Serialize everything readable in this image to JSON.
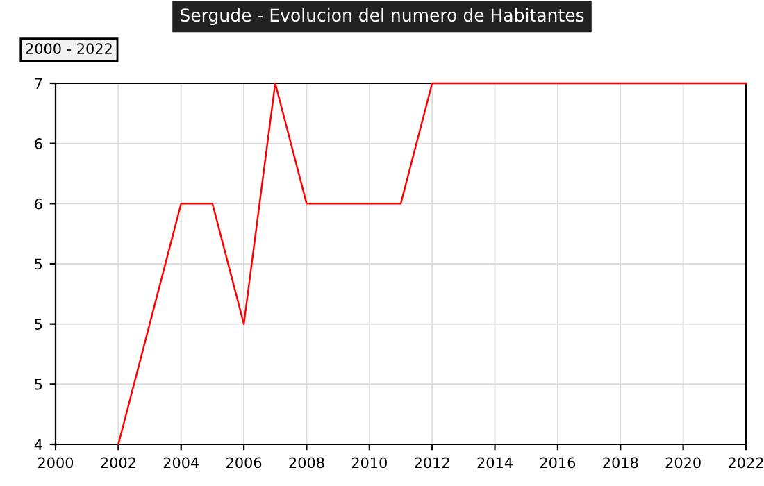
{
  "chart_data": {
    "type": "line",
    "title": "Sergude - Evolucion del numero de Habitantes",
    "subtitle": "2000 - 2022",
    "x": [
      2002,
      2003,
      2004,
      2005,
      2006,
      2007,
      2008,
      2009,
      2010,
      2011,
      2012,
      2013,
      2014,
      2015,
      2016,
      2017,
      2018,
      2019,
      2020,
      2021,
      2022
    ],
    "series": [
      {
        "color": "#ff0000",
        "values": [
          4,
          5,
          6,
          6,
          5,
          7,
          6,
          6,
          6,
          6,
          7,
          7,
          7,
          7,
          7,
          7,
          7,
          7,
          7,
          7,
          7
        ]
      }
    ],
    "xlim": [
      2000,
      2022
    ],
    "xticks": [
      2000,
      2002,
      2004,
      2006,
      2008,
      2010,
      2012,
      2014,
      2016,
      2018,
      2020,
      2022
    ],
    "ylim": [
      4,
      7
    ],
    "yticks": [
      4,
      {
        "value": 4.5,
        "label": "5"
      },
      5,
      {
        "value": 5.5,
        "label": "5"
      },
      6,
      {
        "value": 6.5,
        "label": "6"
      },
      7
    ],
    "grid": true,
    "legend": false,
    "marker": "none",
    "line_style": "solid"
  }
}
